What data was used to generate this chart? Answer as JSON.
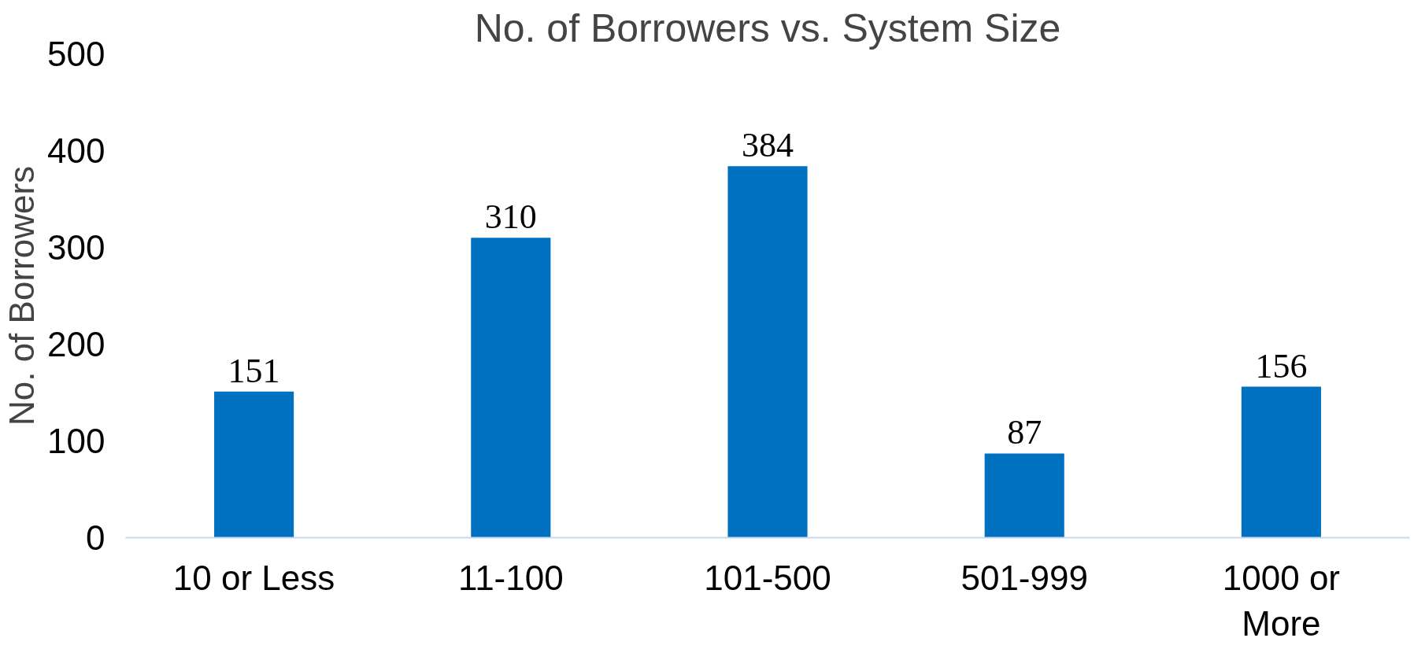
{
  "chart_data": {
    "type": "bar",
    "title": "No. of Borrowers vs. System Size",
    "ylabel": "No. of Borrowers",
    "categories": [
      "10 or Less",
      "11-100",
      "101-500",
      "501-999",
      "1000 or\nMore"
    ],
    "values": [
      151,
      310,
      384,
      87,
      156
    ],
    "color": "#0070c0",
    "ylim": [
      0,
      500
    ],
    "yticks": [
      0,
      100,
      200,
      300,
      400,
      500
    ],
    "grid": false,
    "data_labels": true
  }
}
